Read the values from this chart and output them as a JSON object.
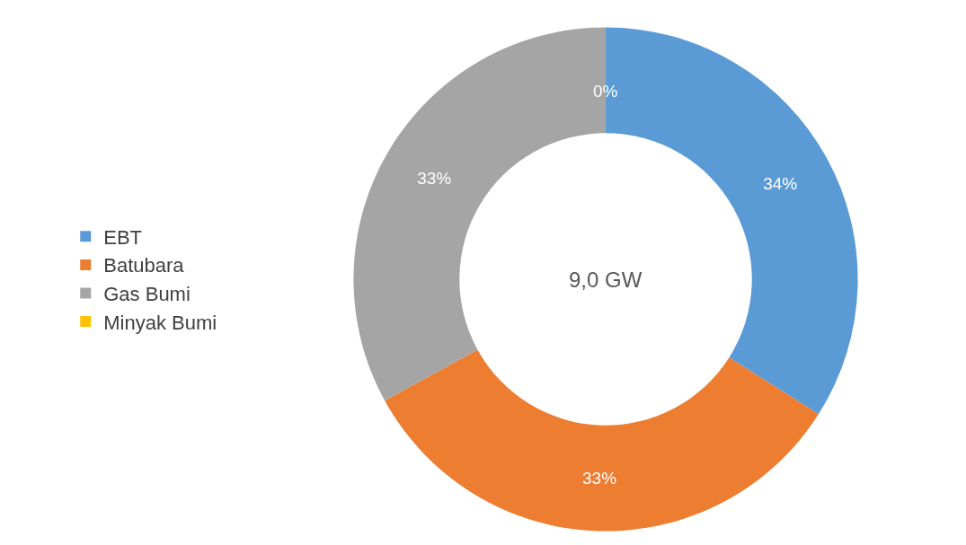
{
  "chart_data": {
    "type": "donut",
    "categories": [
      "EBT",
      "Batubara",
      "Gas Bumi",
      "Minyak Bumi"
    ],
    "values": [
      34,
      33,
      33,
      0
    ],
    "colors": [
      "#5b9bd5",
      "#ed7d31",
      "#a5a5a5",
      "#ffc000"
    ],
    "value_labels": [
      "34%",
      "33%",
      "33%",
      "0%"
    ],
    "annotations": [
      "9,0 GW"
    ],
    "legend": "left"
  }
}
